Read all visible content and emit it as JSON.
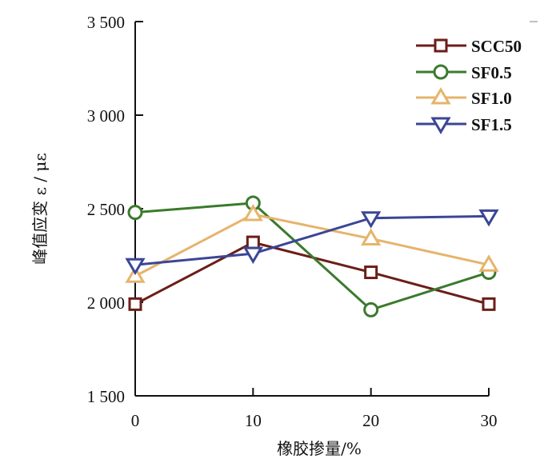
{
  "chart_data": {
    "type": "line",
    "title": "",
    "xlabel": "橡胶掺量/%",
    "ylabel": "峰值应变 ε / με",
    "x": [
      0,
      10,
      20,
      30
    ],
    "xticks": [
      0,
      10,
      20,
      30
    ],
    "xtick_labels": [
      "0",
      "10",
      "20",
      "30"
    ],
    "xlim": [
      0,
      30
    ],
    "ylim": [
      1500,
      3500
    ],
    "yticks": [
      1500,
      2000,
      2500,
      3000,
      3500
    ],
    "ytick_labels": [
      "1 500",
      "2 000",
      "2 500",
      "3 000",
      "3 500"
    ],
    "grid": false,
    "legend_position": "top-right",
    "series": [
      {
        "name": "SCC50",
        "marker": "square",
        "color": "#6b1e18",
        "values": [
          1990,
          2320,
          2160,
          1990
        ]
      },
      {
        "name": "SF0.5",
        "marker": "circle",
        "color": "#3b7a2d",
        "values": [
          2480,
          2530,
          1960,
          2160
        ]
      },
      {
        "name": "SF1.0",
        "marker": "triangle-up",
        "color": "#e6b46b",
        "values": [
          2140,
          2470,
          2340,
          2200
        ]
      },
      {
        "name": "SF1.5",
        "marker": "triangle-down",
        "color": "#3b4696",
        "values": [
          2200,
          2260,
          2450,
          2460
        ]
      }
    ]
  }
}
